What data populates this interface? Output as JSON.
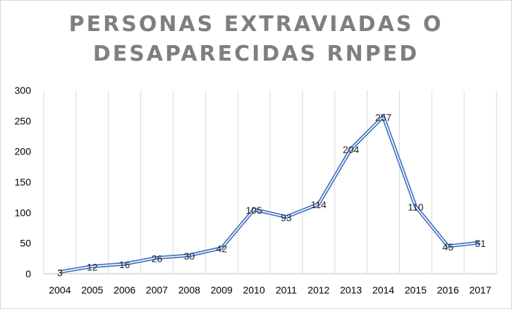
{
  "chart_data": {
    "type": "line",
    "title_line1": "PERSONAS EXTRAVIADAS O",
    "title_line2": "DESAPARECIDAS RNPED",
    "xlabel": "",
    "ylabel": "",
    "categories": [
      "2004",
      "2005",
      "2006",
      "2007",
      "2008",
      "2009",
      "2010",
      "2011",
      "2012",
      "2013",
      "2014",
      "2015",
      "2016",
      "2017"
    ],
    "series": [
      {
        "values": [
          3,
          12,
          16,
          26,
          30,
          42,
          105,
          93,
          114,
          204,
          257,
          110,
          45,
          51
        ]
      }
    ],
    "ylim": [
      0,
      300
    ],
    "yticks": [
      0,
      50,
      100,
      150,
      200,
      250,
      300
    ],
    "grid": "vertical",
    "legend": "none",
    "colors": {
      "line": "#4472c4",
      "grid": "#d9d9d9",
      "title": "#7f7f7f"
    }
  }
}
